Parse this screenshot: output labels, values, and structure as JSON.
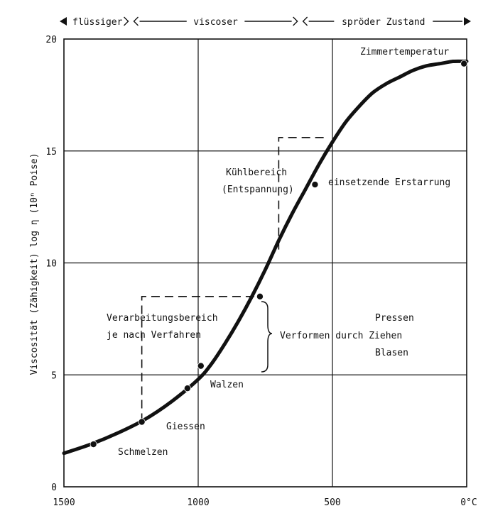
{
  "chart_data": {
    "type": "line",
    "title": "",
    "xlabel": "",
    "ylabel": "Viscosität (Zähigkeit) log η (10ⁿ Poise)",
    "xlim": [
      1500,
      0
    ],
    "ylim": [
      0,
      20
    ],
    "x_ticks": [
      1500,
      1000,
      500,
      0
    ],
    "x_tick_labels": [
      "1500",
      "1000",
      "500",
      "0°C"
    ],
    "y_ticks": [
      0,
      5,
      10,
      15,
      20
    ],
    "y_tick_labels": [
      "0",
      "5",
      "10",
      "15",
      "20"
    ],
    "grid": true,
    "series": [
      {
        "x": [
          1500,
          1400,
          1300,
          1200,
          1100,
          1000,
          950,
          900,
          850,
          800,
          750,
          700,
          650,
          600,
          550,
          500,
          450,
          400,
          350,
          300,
          250,
          200,
          150,
          100,
          50,
          0
        ],
        "y": [
          1.5,
          1.9,
          2.4,
          3.0,
          3.8,
          4.8,
          5.5,
          6.4,
          7.4,
          8.5,
          9.7,
          11.0,
          12.2,
          13.3,
          14.4,
          15.4,
          16.3,
          17.0,
          17.6,
          18.0,
          18.3,
          18.6,
          18.8,
          18.9,
          19.0,
          19.0
        ]
      }
    ],
    "markers": [
      {
        "x": 1390,
        "y": 1.9
      },
      {
        "x": 1210,
        "y": 2.9
      },
      {
        "x": 1040,
        "y": 4.4
      },
      {
        "x": 990,
        "y": 5.4
      },
      {
        "x": 770,
        "y": 8.5
      },
      {
        "x": 565,
        "y": 13.5
      },
      {
        "x": 10,
        "y": 18.9
      }
    ],
    "states": [
      {
        "label": "flüssiger",
        "x_from": 1500,
        "x_to": 1250
      },
      {
        "label": "viscoser",
        "x_from": 1250,
        "x_to": 620
      },
      {
        "label": "spröder Zustand",
        "x_from": 620,
        "x_to": 0
      }
    ],
    "annotations": {
      "zimmer": "Zimmertemperatur",
      "kuehl1": "Kühlbereich",
      "kuehl2": "(Entspannung)",
      "erstarrung": "einsetzende Erstarrung",
      "verarb1": "Verarbeitungsbereich",
      "verarb2": "je nach Verfahren",
      "verformen": "Verformen durch Ziehen",
      "pressen": "Pressen",
      "blasen": "Blasen",
      "walzen": "Walzen",
      "giessen": "Giessen",
      "schmelzen": "Schmelzen"
    }
  }
}
